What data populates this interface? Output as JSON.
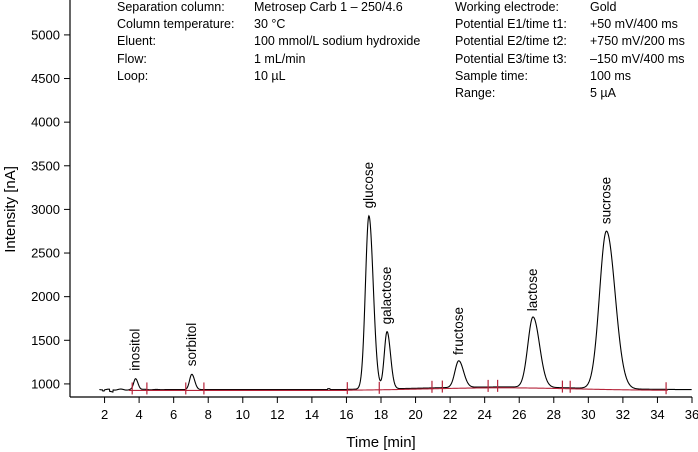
{
  "chart_data": {
    "type": "line",
    "title": "",
    "xlabel": "Time [min]",
    "ylabel": "Intensity [nA]",
    "xlim": [
      0,
      36
    ],
    "ylim": [
      850,
      5400
    ],
    "xticks": [
      2,
      4,
      6,
      8,
      10,
      12,
      14,
      16,
      18,
      20,
      22,
      24,
      26,
      28,
      30,
      32,
      34,
      36
    ],
    "yticks": [
      1000,
      1500,
      2000,
      2500,
      3000,
      3500,
      4000,
      4500,
      5000
    ],
    "baseline": 935,
    "peaks": [
      {
        "name": "inositol",
        "time": 3.8,
        "height": 1060
      },
      {
        "name": "sorbitol",
        "time": 7.05,
        "height": 1110
      },
      {
        "name": "glucose",
        "time": 17.3,
        "height": 2920
      },
      {
        "name": "galactose",
        "time": 18.35,
        "height": 1590
      },
      {
        "name": "fructose",
        "time": 22.5,
        "height": 1240
      },
      {
        "name": "lactose",
        "time": 26.8,
        "height": 1740
      },
      {
        "name": "sucrose",
        "time": 31.05,
        "height": 2740
      }
    ],
    "integration_marks": [
      3.6,
      4.45,
      6.7,
      7.75,
      16.05,
      17.9,
      20.95,
      21.55,
      24.2,
      24.75,
      28.5,
      28.95,
      34.5
    ],
    "conditions_left": [
      {
        "label": "Separation column:",
        "value": "Metrosep Carb 1 – 250/4.6"
      },
      {
        "label": "Column temperature:",
        "value": "30 °C"
      },
      {
        "label": "Eluent:",
        "value": "100 mmol/L sodium hydroxide"
      },
      {
        "label": "Flow:",
        "value": "1 mL/min"
      },
      {
        "label": "Loop:",
        "value": "10 µL"
      }
    ],
    "conditions_right": [
      {
        "label": "Working electrode:",
        "value": "Gold"
      },
      {
        "label": "Potential E1/time t1:",
        "value": "+50 mV/400 ms"
      },
      {
        "label": "Potential E2/time t2:",
        "value": "+750 mV/200 ms"
      },
      {
        "label": "Potential E3/time t3:",
        "value": "–150 mV/400 ms"
      },
      {
        "label": "Sample time:",
        "value": "100 ms"
      },
      {
        "label": "Range:",
        "value": "5 µA"
      }
    ],
    "colors": {
      "trace": "#000000",
      "baseline_fit": "#b5243a"
    }
  }
}
